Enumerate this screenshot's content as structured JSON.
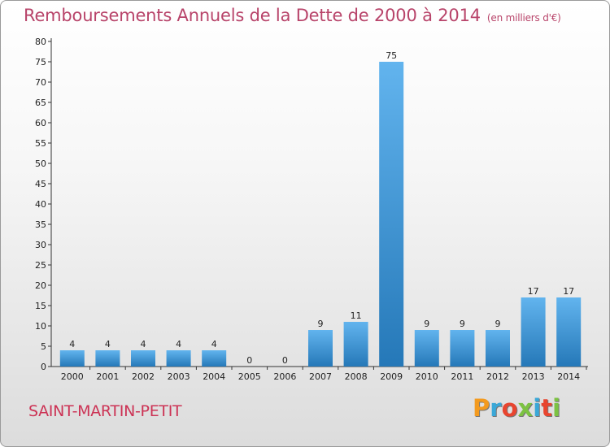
{
  "header": {
    "title": "Remboursements Annuels de la Dette de 2000 à 2014",
    "subtitle": "(en milliers d'€)"
  },
  "footer": {
    "city": "SAINT-MARTIN-PETIT",
    "logo": "Proxiti"
  },
  "colors": {
    "bar_light": "#62b4ee",
    "bar_dark": "#2578b8",
    "title": "#b8446a",
    "city": "#cc3355"
  },
  "chart_data": {
    "type": "bar",
    "categories": [
      "2000",
      "2001",
      "2002",
      "2003",
      "2004",
      "2005",
      "2006",
      "2007",
      "2008",
      "2009",
      "2010",
      "2011",
      "2012",
      "2013",
      "2014"
    ],
    "values": [
      4,
      4,
      4,
      4,
      4,
      0,
      0,
      9,
      11,
      75,
      9,
      9,
      9,
      17,
      17
    ],
    "title": "Remboursements Annuels de la Dette de 2000 à 2014",
    "subtitle": "(en milliers d'€)",
    "ylim": [
      0,
      80
    ],
    "yticks": [
      0,
      5,
      10,
      15,
      20,
      25,
      30,
      35,
      40,
      45,
      50,
      55,
      60,
      65,
      70,
      75,
      80
    ],
    "grid": false,
    "legend": "none"
  }
}
